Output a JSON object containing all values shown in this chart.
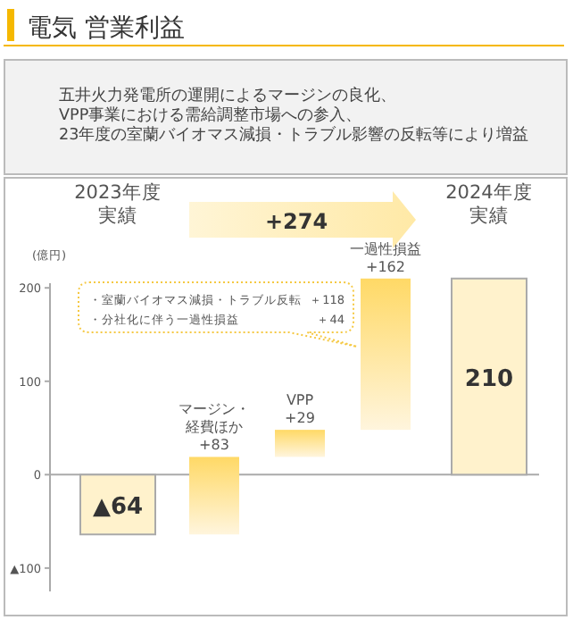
{
  "chart_data": {
    "type": "bar",
    "title": "電気 営業利益",
    "subtitle": "五井火力発電所の運開によるマージンの良化、\nVPP事業における需給調整市場への参入、\n23年度の室蘭バイオマス減損・トラブル影響の反転等により増益",
    "ylabel": "(億円)",
    "categories": [
      "2023年度実績",
      "マージン・経費ほか",
      "VPP",
      "一過性損益",
      "2024年度実績"
    ],
    "values": [
      -64,
      83,
      29,
      162,
      210
    ],
    "base": [
      0,
      -64,
      19,
      48,
      0
    ],
    "colors": [
      "#fff2cc",
      "#ffd966",
      "#ffd966",
      "#ffd966",
      "#fff2cc"
    ],
    "value_labels": [
      "▲64",
      "+83",
      "+29",
      "+162",
      "210"
    ],
    "ylim": [
      -125,
      205
    ],
    "yticks": [
      {
        "value": -100,
        "label": "▲100"
      },
      0,
      100,
      200
    ],
    "annotations": [
      "+274",
      "・室蘭バイオマス減損・トラブル反転",
      "＋118",
      "・分社化に伴う一過性損益",
      "＋44"
    ],
    "tick_labels": "y"
  }
}
